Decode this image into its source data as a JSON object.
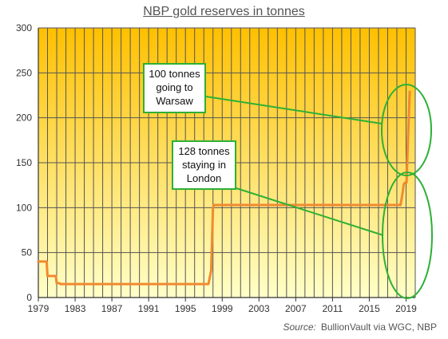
{
  "chart_data": {
    "type": "line",
    "title": "NBP gold reserves in tonnes",
    "xlabel": "",
    "ylabel": "",
    "xlim": [
      1979,
      2020
    ],
    "ylim": [
      0,
      300
    ],
    "x_ticks": [
      "1979",
      "1983",
      "1987",
      "1991",
      "1995",
      "1999",
      "2003",
      "2007",
      "2011",
      "2015",
      "2019"
    ],
    "y_ticks": [
      "0",
      "50",
      "100",
      "150",
      "200",
      "250",
      "300"
    ],
    "grid": true,
    "series": [
      {
        "color": "#f08a30",
        "x": [
          1979,
          1979.9,
          1980.0,
          1980.8,
          1980.9,
          1981.0,
          1981.3,
          1981.4,
          1997.5,
          1997.8,
          1998.0,
          1998.1,
          2018.2,
          2018.4,
          2018.6,
          2018.75,
          2018.9,
          2019.05,
          2019.2,
          2019.4
        ],
        "y": [
          40,
          40,
          24,
          24,
          24,
          16,
          16,
          15,
          15,
          30,
          100,
          103,
          103,
          103,
          115,
          126,
          128,
          128,
          175,
          229
        ]
      }
    ],
    "annotations": [
      {
        "text": "100 tonnes going to Warsaw",
        "lines": [
          "100 tonnes",
          "going to",
          "Warsaw"
        ]
      },
      {
        "text": "128 tonnes staying in London",
        "lines": [
          "128 tonnes",
          "staying in",
          "London"
        ]
      }
    ],
    "source_label": "Source:",
    "source_text": "BullionVault via WGC, NBP",
    "colors": {
      "plot_top": "#ffc000",
      "plot_bottom": "#ffffc8",
      "line": "#f08a30",
      "callout": "#2db035",
      "grid": "#555555"
    }
  }
}
